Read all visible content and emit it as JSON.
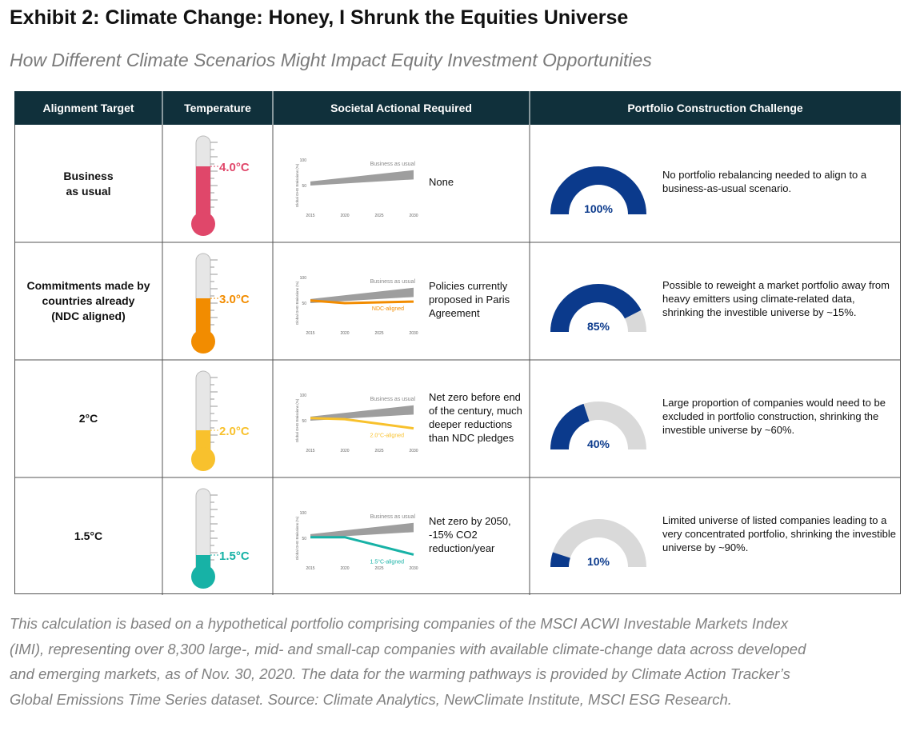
{
  "header": {
    "title": "Exhibit 2: Climate Change: Honey, I Shrunk the Equities Universe",
    "subtitle": "How Different Climate Scenarios Might Impact Equity Investment Opportunities"
  },
  "table": {
    "columns": [
      "Alignment Target",
      "Temperature",
      "Societal Actional Required",
      "Portfolio Construction Challenge"
    ],
    "mini_chart": {
      "ylabel": "Global GHG Emissions (%)",
      "ylim": [
        0,
        100
      ],
      "yticks": [
        50,
        100
      ],
      "xlim": [
        2015,
        2030
      ],
      "xticks": [
        2015,
        2020,
        2025,
        2030
      ],
      "baseline": {
        "name": "Business as usual",
        "color": "#9e9e9e",
        "x": [
          2015,
          2030
        ],
        "lower": [
          50,
          62
        ],
        "upper": [
          58,
          80
        ]
      }
    },
    "rows": [
      {
        "target": "Business\nas usual",
        "temperature": {
          "value": 4.0,
          "label": "4.0°C"
        },
        "color": "#e0476a",
        "pathway": null,
        "action": "None",
        "share": {
          "value": 100,
          "label": "100%"
        },
        "challenge": "No portfolio rebalancing needed to align to a business-as-usual scenario."
      },
      {
        "target": "Commitments made by\ncountries already\n(NDC aligned)",
        "temperature": {
          "value": 3.0,
          "label": "3.0°C"
        },
        "color": "#f28c00",
        "pathway": {
          "name": "NDC-aligned",
          "x": [
            2015,
            2020,
            2030
          ],
          "values": [
            55,
            50,
            53
          ]
        },
        "action": "Policies currently proposed in Paris Agreement",
        "share": {
          "value": 85,
          "label": "85%"
        },
        "challenge": "Possible to reweight a market portfolio away from heavy emitters using climate-related data, shrinking the investible universe by ~15%."
      },
      {
        "target": "2°C",
        "temperature": {
          "value": 2.0,
          "label": "2.0°C"
        },
        "color": "#f8c12d",
        "pathway": {
          "name": "2.0°C-aligned",
          "x": [
            2015,
            2020,
            2030
          ],
          "values": [
            55,
            53,
            35
          ]
        },
        "action": "Net zero before end of the century, much deeper reductions than NDC pledges",
        "share": {
          "value": 40,
          "label": "40%"
        },
        "challenge": "Large proportion of companies would need to be excluded in portfolio construction, shrinking the investible universe by ~60%."
      },
      {
        "target": "1.5°C",
        "temperature": {
          "value": 1.5,
          "label": "1.5°C"
        },
        "color": "#17b2a6",
        "pathway": {
          "name": "1.5°C-aligned",
          "x": [
            2015,
            2020,
            2030
          ],
          "values": [
            52,
            52,
            18
          ]
        },
        "action": "Net zero by 2050, -15% CO2 reduction/year",
        "share": {
          "value": 10,
          "label": "10%"
        },
        "challenge": "Limited universe of listed companies leading to a very concentrated portfolio, shrinking the investible universe by ~90%."
      }
    ]
  },
  "footnote": "This calculation is based on a hypothetical portfolio comprising companies of the MSCI ACWI Investable Markets Index (IMI), representing over 8,300 large-, mid- and small-cap companies with available climate-change data across developed and emerging markets, as of Nov. 30, 2020. The data for the warming pathways is provided by Climate Action Tracker’s Global Emissions Time Series dataset. Source: Climate Analytics, NewClimate Institute, MSCI ESG Research."
}
